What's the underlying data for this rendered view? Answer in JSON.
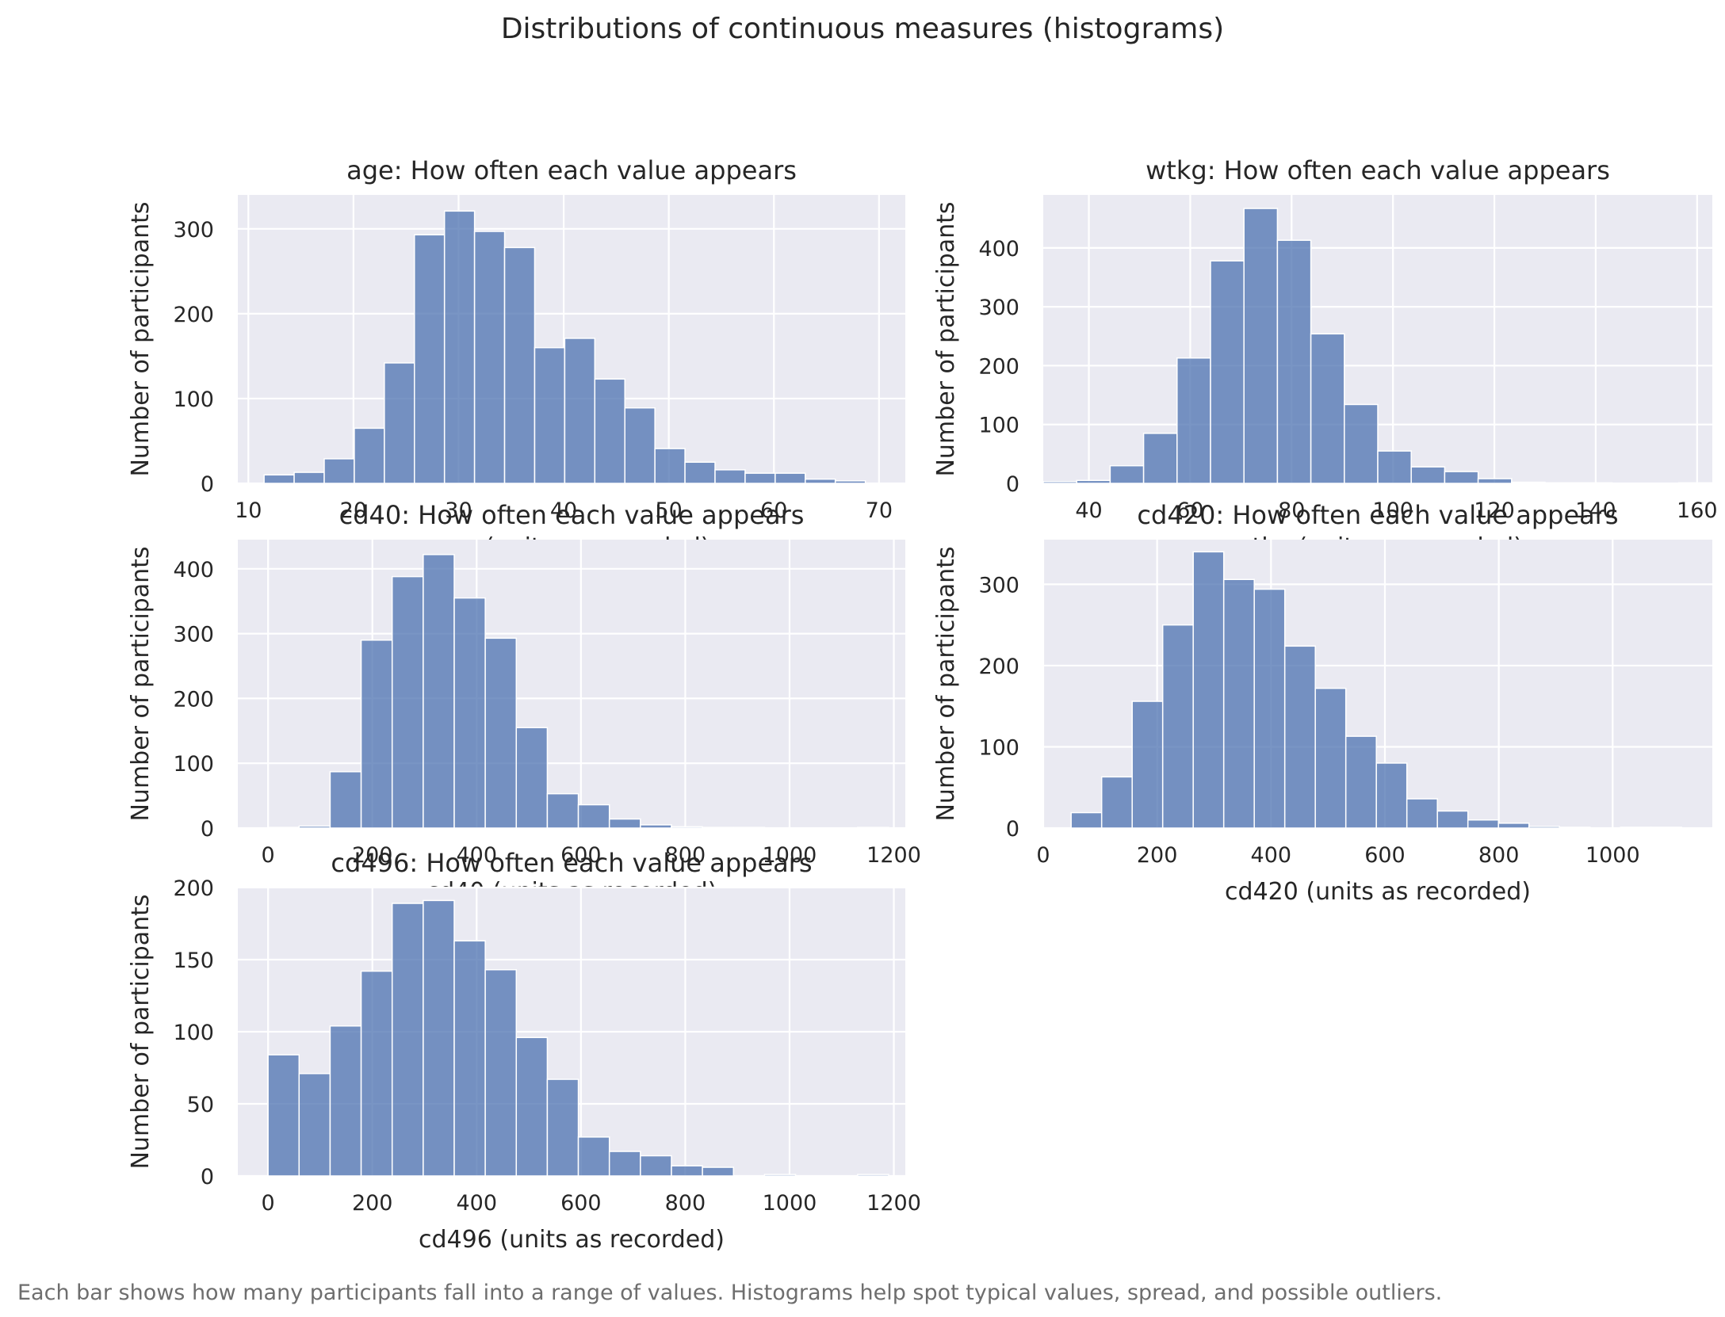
{
  "figure": {
    "title": "Distributions of continuous measures (histograms)",
    "caption": "Each bar shows how many participants fall into a range of values. Histograms help spot typical values, spread, and possible outliers."
  },
  "chart_data": [
    {
      "id": "age",
      "type": "bar",
      "title": "age: How often each value appears",
      "xlabel": "age (units as recorded)",
      "ylabel": "Number of participants",
      "xlim": [
        9,
        72.5
      ],
      "ylim": [
        0,
        340
      ],
      "xticks": [
        10,
        20,
        30,
        40,
        50,
        60,
        70
      ],
      "yticks": [
        0,
        100,
        200,
        300
      ],
      "bin_start": 11.5,
      "bin_width": 2.86,
      "values": [
        10,
        13,
        29,
        65,
        142,
        293,
        321,
        297,
        278,
        160,
        171,
        123,
        89,
        41,
        25,
        16,
        12,
        12,
        5,
        3
      ],
      "grid": true
    },
    {
      "id": "wtkg",
      "type": "bar",
      "title": "wtkg: How often each value appears",
      "xlabel": "wtkg (units as recorded)",
      "ylabel": "Number of participants",
      "xlim": [
        31,
        163
      ],
      "ylim": [
        0,
        490
      ],
      "xticks": [
        40,
        60,
        80,
        100,
        120,
        140,
        160
      ],
      "yticks": [
        0,
        100,
        200,
        300,
        400
      ],
      "bin_start": 31,
      "bin_width": 6.6,
      "values": [
        3,
        5,
        30,
        85,
        213,
        378,
        467,
        413,
        254,
        134,
        55,
        28,
        20,
        8,
        2,
        1,
        1,
        0,
        0,
        1
      ],
      "grid": true
    },
    {
      "id": "cd40",
      "type": "bar",
      "title": "cd40: How often each value appears",
      "xlabel": "cd40 (units as recorded)",
      "ylabel": "Number of participants",
      "xlim": [
        -58,
        1222
      ],
      "ylim": [
        0,
        445
      ],
      "xticks": [
        0,
        200,
        400,
        600,
        800,
        1000,
        1200
      ],
      "yticks": [
        0,
        100,
        200,
        300,
        400
      ],
      "bin_start": 0,
      "bin_width": 59.5,
      "values": [
        1,
        3,
        87,
        290,
        388,
        422,
        355,
        293,
        155,
        53,
        36,
        14,
        5,
        2,
        1,
        1,
        0,
        0,
        0,
        1
      ],
      "grid": true
    },
    {
      "id": "cd420",
      "type": "bar",
      "title": "cd420: How often each value appears",
      "xlabel": "cd420 (units as recorded)",
      "ylabel": "Number of participants",
      "xlim": [
        0,
        1175
      ],
      "ylim": [
        0,
        355
      ],
      "xticks": [
        0,
        200,
        400,
        600,
        800,
        1000
      ],
      "yticks": [
        0,
        100,
        200,
        300
      ],
      "bin_start": 49,
      "bin_width": 53.6,
      "values": [
        19,
        63,
        156,
        250,
        340,
        306,
        294,
        224,
        172,
        113,
        80,
        36,
        21,
        10,
        6,
        2,
        1,
        0,
        1,
        1
      ],
      "grid": true
    },
    {
      "id": "cd496",
      "type": "bar",
      "title": "cd496: How often each value appears",
      "xlabel": "cd496 (units as recorded)",
      "ylabel": "Number of participants",
      "xlim": [
        -58,
        1222
      ],
      "ylim": [
        0,
        200
      ],
      "xticks": [
        0,
        200,
        400,
        600,
        800,
        1000,
        1200
      ],
      "yticks": [
        0,
        50,
        100,
        150,
        200
      ],
      "bin_start": 0,
      "bin_width": 59.5,
      "values": [
        84,
        71,
        104,
        142,
        189,
        191,
        163,
        143,
        96,
        67,
        27,
        17,
        14,
        7,
        6,
        0,
        1,
        0,
        0,
        1
      ],
      "grid": true
    }
  ]
}
